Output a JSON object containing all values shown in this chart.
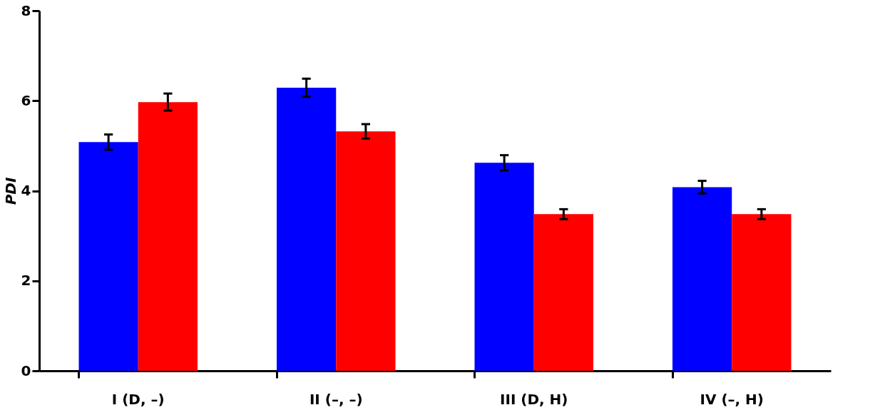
{
  "chart_data": {
    "type": "bar",
    "ylabel": "PDI",
    "categories": [
      "I (D, –)",
      "II (–, –)",
      "III (D, H)",
      "IV (–, H)"
    ],
    "series": [
      {
        "color": "#0000ff",
        "values": [
          5.08,
          6.29,
          4.62,
          4.08
        ],
        "errors": [
          0.17,
          0.2,
          0.17,
          0.14
        ]
      },
      {
        "color": "#ff0000",
        "values": [
          5.97,
          5.32,
          3.48,
          3.48
        ],
        "errors": [
          0.19,
          0.16,
          0.11,
          0.11
        ]
      }
    ],
    "ylim": [
      0,
      8
    ],
    "yticks": [
      0,
      2,
      4,
      6,
      8
    ],
    "grid": false,
    "legend": false
  }
}
